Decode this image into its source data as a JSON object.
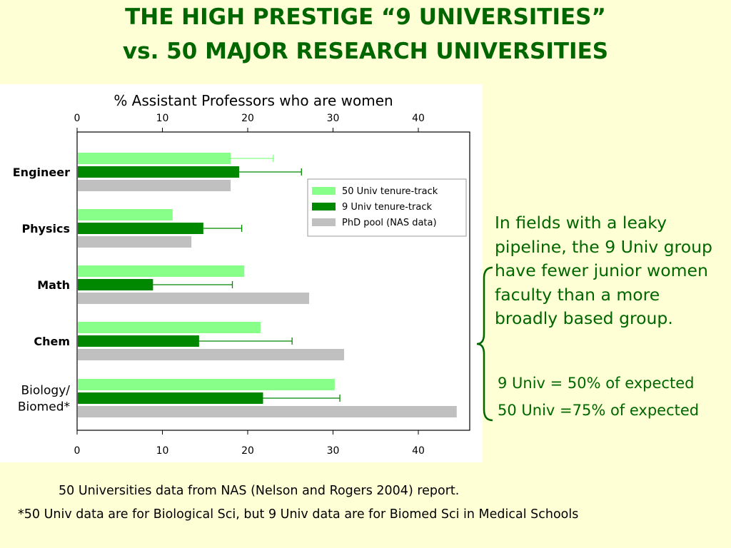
{
  "slide": {
    "title_line1": "THE HIGH PRESTIGE “9 UNIVERSITIES”",
    "title_line2": "vs. 50 MAJOR RESEARCH UNIVERSITIES",
    "side_text": "In fields with a leaky pipeline, the 9 Univ group have fewer junior women faculty than a more broadly based group.",
    "ratio_9": "9 Univ = 50% of expected",
    "ratio_50": "50 Univ =75% of expected",
    "note1": "50 Universities data from NAS (Nelson and Rogers 2004) report.",
    "note2": "*50 Univ data  are for Biological Sci, but 9 Univ data are for Biomed Sci in Medical Schools",
    "colors": {
      "text_green": "#006600",
      "background": "#FFFFD6"
    }
  },
  "chart_data": {
    "type": "bar",
    "orientation": "horizontal",
    "title": "% Assistant Professors who are women",
    "xlim": [
      0,
      46
    ],
    "ticks": [
      0,
      10,
      20,
      30,
      40
    ],
    "categories": [
      "Engineer",
      "Physics",
      "Math",
      "Chem",
      "Biology/\nBiomed*"
    ],
    "series": [
      {
        "name": "50 Univ tenure-track",
        "color": "#88FF88",
        "values": [
          18,
          11.2,
          19.6,
          21.5,
          30.2
        ],
        "errors": [
          23,
          null,
          null,
          null,
          null
        ]
      },
      {
        "name": "9 Univ tenure-track",
        "color": "#008800",
        "values": [
          19,
          14.8,
          8.9,
          14.3,
          21.8
        ],
        "errors": [
          26.3,
          19.3,
          18.2,
          25.2,
          30.8
        ]
      },
      {
        "name": "PhD pool (NAS data)",
        "color": "#C0C0C0",
        "values": [
          18,
          13.4,
          27.2,
          31.3,
          44.5
        ],
        "errors": [
          null,
          null,
          null,
          null,
          null
        ]
      }
    ],
    "legend_position": "top-right",
    "grid": false
  }
}
